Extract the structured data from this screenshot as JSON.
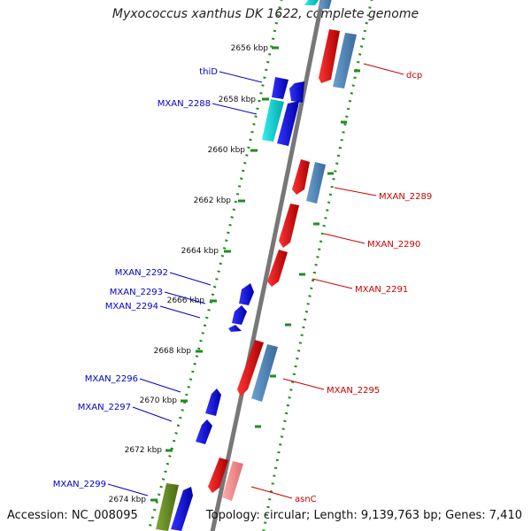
{
  "title": "Myxococcus xanthus DK 1622, complete genome",
  "accession": "Accession: NC_008095",
  "summary": "Topology: circular; Length: 9,139,763 bp; Genes: 7,410",
  "ticks": [
    {
      "label": "2656 kbp"
    },
    {
      "label": "2658 kbp"
    },
    {
      "label": "2660 kbp"
    },
    {
      "label": "2662 kbp"
    },
    {
      "label": "2664 kbp"
    },
    {
      "label": "2666 kbp"
    },
    {
      "label": "2668 kbp"
    },
    {
      "label": "2670 kbp"
    },
    {
      "label": "2672 kbp"
    },
    {
      "label": "2674 kbp"
    }
  ],
  "genes_left": [
    {
      "label": "thiD",
      "color": "#0000cc"
    },
    {
      "label": "MXAN_2288",
      "color": "#0000cc"
    },
    {
      "label": "MXAN_2292",
      "color": "#0000cc"
    },
    {
      "label": "MXAN_2293",
      "color": "#0000cc"
    },
    {
      "label": "MXAN_2294",
      "color": "#0000cc"
    },
    {
      "label": "MXAN_2296",
      "color": "#0000cc"
    },
    {
      "label": "MXAN_2297",
      "color": "#0000cc"
    },
    {
      "label": "MXAN_2299",
      "color": "#0000cc"
    }
  ],
  "genes_right": [
    {
      "label": "dcp",
      "color": "#cc0000"
    },
    {
      "label": "MXAN_2289",
      "color": "#cc0000"
    },
    {
      "label": "MXAN_2290",
      "color": "#cc0000"
    },
    {
      "label": "MXAN_2291",
      "color": "#cc0000"
    },
    {
      "label": "MXAN_2295",
      "color": "#cc0000"
    },
    {
      "label": "asnC",
      "color": "#cc0000"
    }
  ],
  "colors": {
    "forward_cds": "#ff0000",
    "reverse_cds": "#0000ff",
    "forward_rna": "#4682b4",
    "reverse_rna": "#00cccc",
    "olive": "#6b8e23",
    "pink": "#f08080",
    "backbone": "#888888",
    "dots": "#228b22"
  }
}
